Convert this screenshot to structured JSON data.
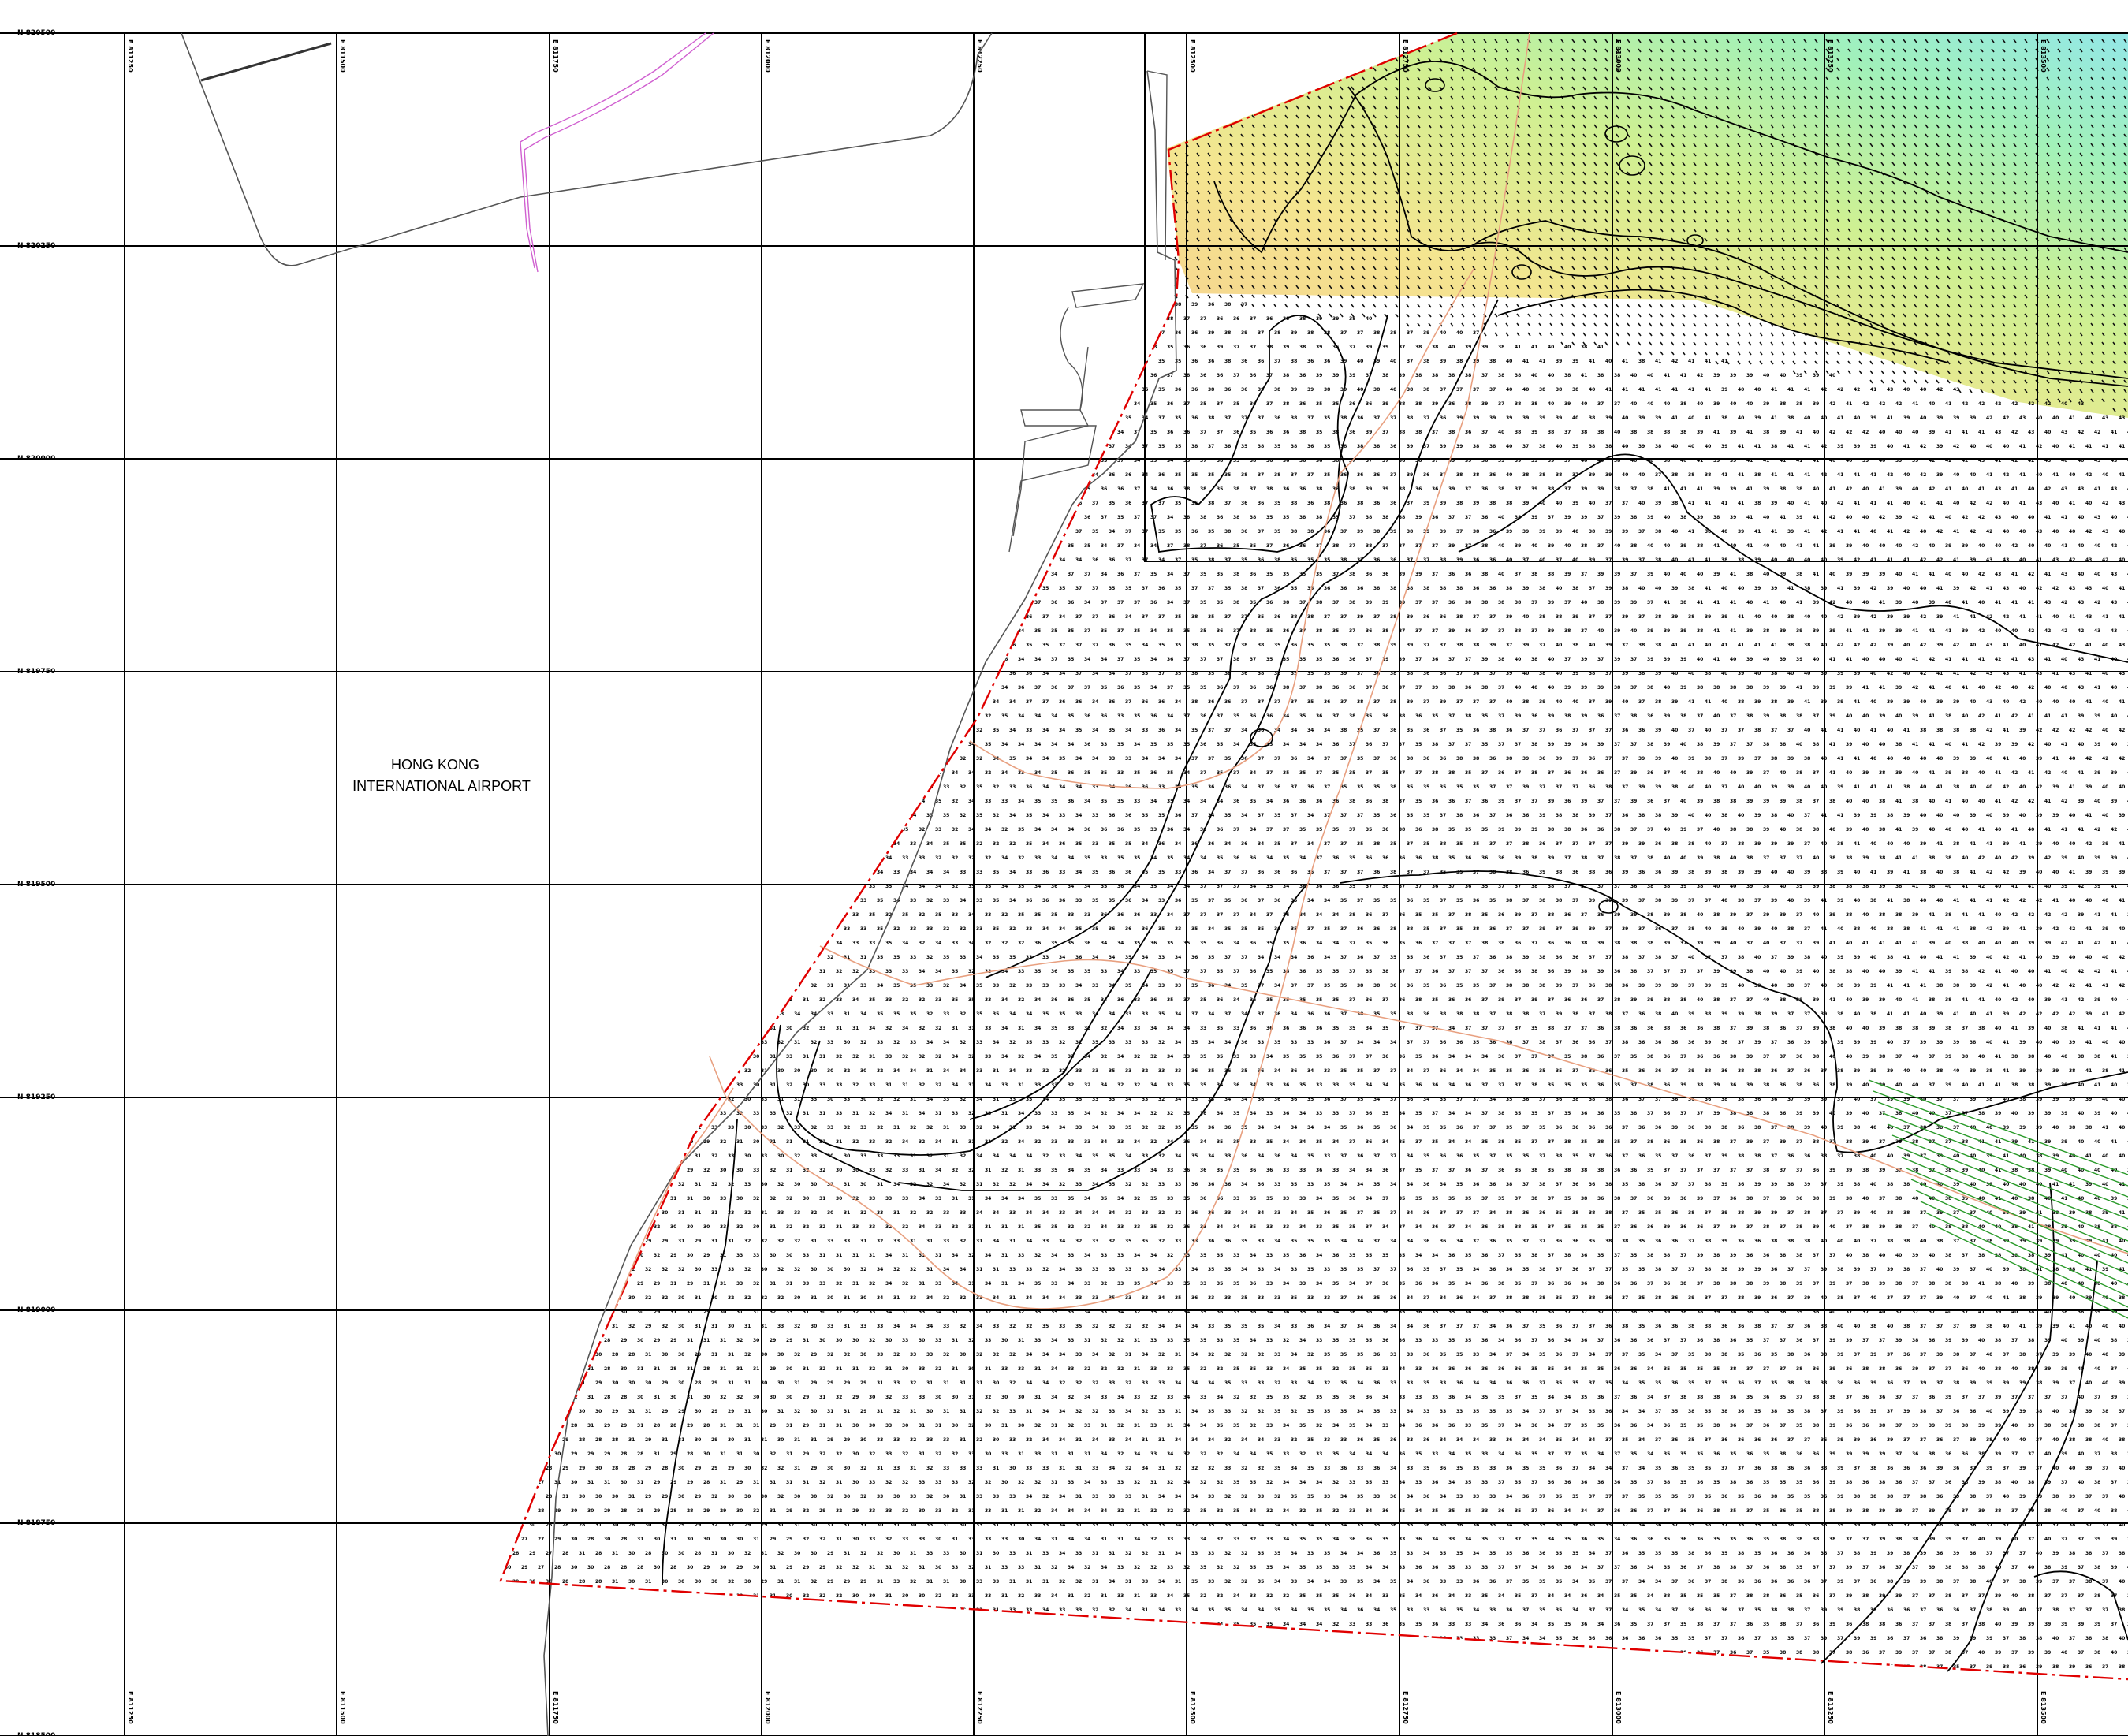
{
  "map": {
    "place_label_line1": "HONG KONG",
    "place_label_line2": "INTERNATIONAL AIRPORT",
    "northing_labels": [
      "N 820500",
      "N 820250",
      "N 820000",
      "N 819750",
      "N 819500",
      "N 819250",
      "N 819000",
      "N 818750",
      "N 818500"
    ],
    "easting_labels": [
      "E 811250",
      "E 811500",
      "E 811750",
      "E 812000",
      "E 812250",
      "E 812500",
      "E 812750",
      "E 813000",
      "E 813250",
      "E 813500"
    ],
    "colors": {
      "grid": "#000000",
      "boundary": "#e00000",
      "contour": "#000000",
      "coastline": "#555555",
      "pipeline": "#d060d0",
      "orange_contour": "#e8a080",
      "green_lines": "#2a9a2a",
      "heat_stops": [
        "#f4e28a",
        "#d8f088",
        "#a8f0b0",
        "#90e8e0"
      ]
    },
    "icons": [
      "survey-grid",
      "sounding-points",
      "bathymetric-contours",
      "survey-boundary"
    ]
  }
}
